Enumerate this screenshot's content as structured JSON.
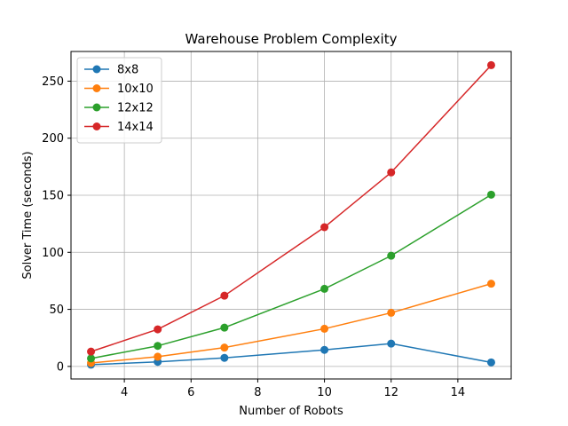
{
  "chart_data": {
    "type": "line",
    "title": "Warehouse Problem Complexity",
    "xlabel": "Number of Robots",
    "ylabel": "Solver Time (seconds)",
    "x": [
      3,
      5,
      7,
      10,
      12,
      15
    ],
    "xlim": [
      2.4,
      15.6
    ],
    "ylim": [
      -11,
      276
    ],
    "xticks": [
      4,
      6,
      8,
      10,
      12,
      14
    ],
    "yticks": [
      0,
      50,
      100,
      150,
      200,
      250
    ],
    "grid": true,
    "legend_position": "top-left",
    "series": [
      {
        "name": "8x8",
        "color": "#1f77b4",
        "values": [
          1.5,
          4,
          7.5,
          14.5,
          20,
          3.5
        ]
      },
      {
        "name": "10x10",
        "color": "#ff7f0e",
        "values": [
          3,
          8.5,
          16.5,
          33,
          47,
          72.5
        ]
      },
      {
        "name": "12x12",
        "color": "#2ca02c",
        "values": [
          7,
          18,
          34,
          68,
          97,
          150.5
        ]
      },
      {
        "name": "14x14",
        "color": "#d62728",
        "values": [
          13,
          32.5,
          62,
          122,
          170,
          264
        ]
      }
    ]
  }
}
